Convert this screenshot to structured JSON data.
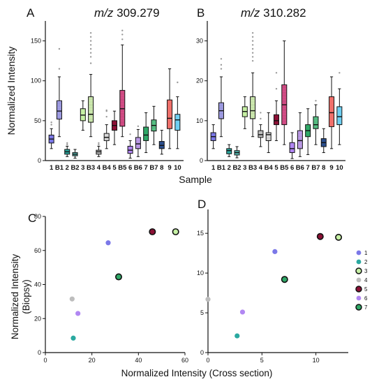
{
  "figure": {
    "panel_letters": [
      "A",
      "B",
      "C",
      "D"
    ],
    "xlabel_top": "Sample",
    "xlabel_bottom": "Normalized Intensity (Cross section)",
    "ylabel_top": "Normalized Intensity",
    "ylabel_bottom_line1": "Normalized Intensity",
    "ylabel_bottom_line2": "(Biopsy)"
  },
  "colors": {
    "1": "#7b78e8",
    "B1": "#a9a6f2",
    "2": "#2aa9a0",
    "B2": "#5cc8c0",
    "3": "#c6f0a4",
    "B3": "#d9f7b9",
    "4": "#bdbdbd",
    "B4": "#e8e8e8",
    "5": "#8b1035",
    "B5": "#e0518e",
    "6": "#b187f2",
    "B6": "#c8a4f5",
    "7": "#2fa867",
    "B7": "#5ccc8c",
    "8": "#2b4f8e",
    "9": "#f0706b",
    "10": "#6ecff2"
  },
  "chart_data": [
    {
      "type": "box",
      "panel": "A",
      "title_italic": "m/z",
      "title_rest": " 309.279",
      "xlabel": "Sample",
      "ylabel": "Normalized Intensity",
      "ylim": [
        0,
        175
      ],
      "yticks": [
        "0",
        "50",
        "100",
        "150"
      ],
      "categories": [
        "1",
        "B1",
        "2",
        "B2",
        "3",
        "B3",
        "4",
        "B4",
        "5",
        "B5",
        "6",
        "B6",
        "7",
        "B7",
        "8",
        "9",
        "10"
      ],
      "boxes": [
        {
          "min": 15,
          "q1": 22,
          "median": 27,
          "q3": 32,
          "max": 40,
          "outliers": [
            45,
            48
          ]
        },
        {
          "min": 30,
          "q1": 52,
          "median": 62,
          "q3": 75,
          "max": 105,
          "outliers": [
            115,
            140
          ]
        },
        {
          "min": 5,
          "q1": 8,
          "median": 11,
          "q3": 14,
          "max": 18,
          "outliers": [
            20,
            22
          ]
        },
        {
          "min": 3,
          "q1": 6,
          "median": 8,
          "q3": 10,
          "max": 14,
          "outliers": []
        },
        {
          "min": 38,
          "q1": 50,
          "median": 57,
          "q3": 65,
          "max": 75,
          "outliers": []
        },
        {
          "min": 30,
          "q1": 48,
          "median": 58,
          "q3": 80,
          "max": 108,
          "outliers": [
            122,
            130,
            135,
            140,
            145,
            150,
            155,
            160
          ]
        },
        {
          "min": 5,
          "q1": 8,
          "median": 11,
          "q3": 13,
          "max": 18,
          "outliers": [
            20,
            22
          ]
        },
        {
          "min": 15,
          "q1": 25,
          "median": 29,
          "q3": 34,
          "max": 45,
          "outliers": [
            55,
            62,
            63
          ]
        },
        {
          "min": 20,
          "q1": 38,
          "median": 44,
          "q3": 50,
          "max": 62,
          "outliers": []
        },
        {
          "min": 30,
          "q1": 43,
          "median": 65,
          "q3": 88,
          "max": 145,
          "outliers": [
            152,
            158,
            163
          ]
        },
        {
          "min": 3,
          "q1": 9,
          "median": 13,
          "q3": 18,
          "max": 25,
          "outliers": [
            33
          ]
        },
        {
          "min": 5,
          "q1": 15,
          "median": 21,
          "q3": 29,
          "max": 39,
          "outliers": [
            43
          ]
        },
        {
          "min": 10,
          "q1": 25,
          "median": 32,
          "q3": 42,
          "max": 60,
          "outliers": []
        },
        {
          "min": 20,
          "q1": 37,
          "median": 44,
          "q3": 51,
          "max": 68,
          "outliers": []
        },
        {
          "min": 8,
          "q1": 15,
          "median": 19,
          "q3": 24,
          "max": 38,
          "outliers": []
        },
        {
          "min": 15,
          "q1": 40,
          "median": 53,
          "q3": 76,
          "max": 115,
          "outliers": []
        },
        {
          "min": 15,
          "q1": 38,
          "median": 51,
          "q3": 58,
          "max": 80,
          "outliers": [
            98
          ]
        }
      ]
    },
    {
      "type": "box",
      "panel": "B",
      "title_italic": "m/z",
      "title_rest": " 310.282",
      "xlabel": "Sample",
      "ylabel": "",
      "ylim": [
        0,
        35
      ],
      "yticks": [
        "0",
        "10",
        "20",
        "30"
      ],
      "categories": [
        "1",
        "B1",
        "2",
        "B2",
        "3",
        "B3",
        "4",
        "B4",
        "5",
        "B5",
        "6",
        "B6",
        "7",
        "B7",
        "8",
        "9",
        "10"
      ],
      "boxes": [
        {
          "min": 3,
          "q1": 5,
          "median": 6,
          "q3": 7,
          "max": 9,
          "outliers": []
        },
        {
          "min": 6,
          "q1": 10.5,
          "median": 12.5,
          "q3": 14.5,
          "max": 21,
          "outliers": [
            23,
            24,
            25.5
          ]
        },
        {
          "min": 1,
          "q1": 1.7,
          "median": 2.5,
          "q3": 3,
          "max": 4,
          "outliers": []
        },
        {
          "min": 0.7,
          "q1": 1.4,
          "median": 2,
          "q3": 2.5,
          "max": 3.5,
          "outliers": []
        },
        {
          "min": 8,
          "q1": 11,
          "median": 12.3,
          "q3": 13.5,
          "max": 16,
          "outliers": []
        },
        {
          "min": 6,
          "q1": 10.5,
          "median": 12.5,
          "q3": 16,
          "max": 22,
          "outliers": [
            25,
            26,
            27,
            28,
            29,
            30,
            31,
            32
          ]
        },
        {
          "min": 3.5,
          "q1": 5.8,
          "median": 6.5,
          "q3": 7.5,
          "max": 9,
          "outliers": [
            10.5,
            12
          ]
        },
        {
          "min": 2,
          "q1": 5,
          "median": 6.5,
          "q3": 7,
          "max": 12,
          "outliers": []
        },
        {
          "min": 5,
          "q1": 9,
          "median": 10,
          "q3": 11.5,
          "max": 15,
          "outliers": [
            18,
            22
          ]
        },
        {
          "min": 4,
          "q1": 9,
          "median": 14,
          "q3": 19,
          "max": 30,
          "outliers": []
        },
        {
          "min": 0.5,
          "q1": 2,
          "median": 3,
          "q3": 4.5,
          "max": 7,
          "outliers": []
        },
        {
          "min": 1,
          "q1": 3,
          "median": 5,
          "q3": 7.5,
          "max": 12,
          "outliers": []
        },
        {
          "min": 1.5,
          "q1": 6,
          "median": 7.5,
          "q3": 9,
          "max": 13,
          "outliers": []
        },
        {
          "min": 4,
          "q1": 8,
          "median": 9,
          "q3": 11,
          "max": 14,
          "outliers": [
            15
          ]
        },
        {
          "min": 2,
          "q1": 3.5,
          "median": 4.5,
          "q3": 5.5,
          "max": 8,
          "outliers": []
        },
        {
          "min": 3,
          "q1": 8.5,
          "median": 12,
          "q3": 16,
          "max": 21,
          "outliers": []
        },
        {
          "min": 4,
          "q1": 9,
          "median": 11,
          "q3": 13.5,
          "max": 18,
          "outliers": [
            22
          ]
        }
      ]
    },
    {
      "type": "scatter",
      "panel": "C",
      "xlabel": "Normalized Intensity (Cross section)",
      "ylabel": "Normalized Intensity (Biopsy)",
      "xlim": [
        0,
        60
      ],
      "ylim": [
        0,
        80
      ],
      "xticks": [
        "0",
        "20",
        "40",
        "60"
      ],
      "yticks": [
        "0",
        "20",
        "40",
        "60",
        "80"
      ],
      "points": [
        {
          "sample": "1",
          "x": 27,
          "y": 64.5
        },
        {
          "sample": "2",
          "x": 12,
          "y": 8.5
        },
        {
          "sample": "3",
          "x": 56,
          "y": 71
        },
        {
          "sample": "4",
          "x": 11.5,
          "y": 31.5
        },
        {
          "sample": "5",
          "x": 46,
          "y": 71
        },
        {
          "sample": "6",
          "x": 14,
          "y": 23
        },
        {
          "sample": "7",
          "x": 31.5,
          "y": 44.5
        }
      ]
    },
    {
      "type": "scatter",
      "panel": "D",
      "xlabel": "Normalized Intensity (Cross section)",
      "ylabel": "",
      "xlim": [
        0,
        13
      ],
      "ylim": [
        0,
        18
      ],
      "xticks": [
        "0",
        "5",
        "10"
      ],
      "yticks": [
        "0",
        "5",
        "10",
        "15"
      ],
      "points": [
        {
          "sample": "1",
          "x": 6.2,
          "y": 12.7
        },
        {
          "sample": "2",
          "x": 2.7,
          "y": 2.1
        },
        {
          "sample": "3",
          "x": 12.1,
          "y": 14.5
        },
        {
          "sample": "4",
          "x": 0,
          "y": 6.7
        },
        {
          "sample": "5",
          "x": 10.4,
          "y": 14.6
        },
        {
          "sample": "6",
          "x": 3.2,
          "y": 5.1
        },
        {
          "sample": "7",
          "x": 7.1,
          "y": 9.2
        }
      ],
      "legend": {
        "placement": "right",
        "entries": [
          "1",
          "2",
          "3",
          "4",
          "5",
          "6",
          "7"
        ]
      }
    }
  ]
}
